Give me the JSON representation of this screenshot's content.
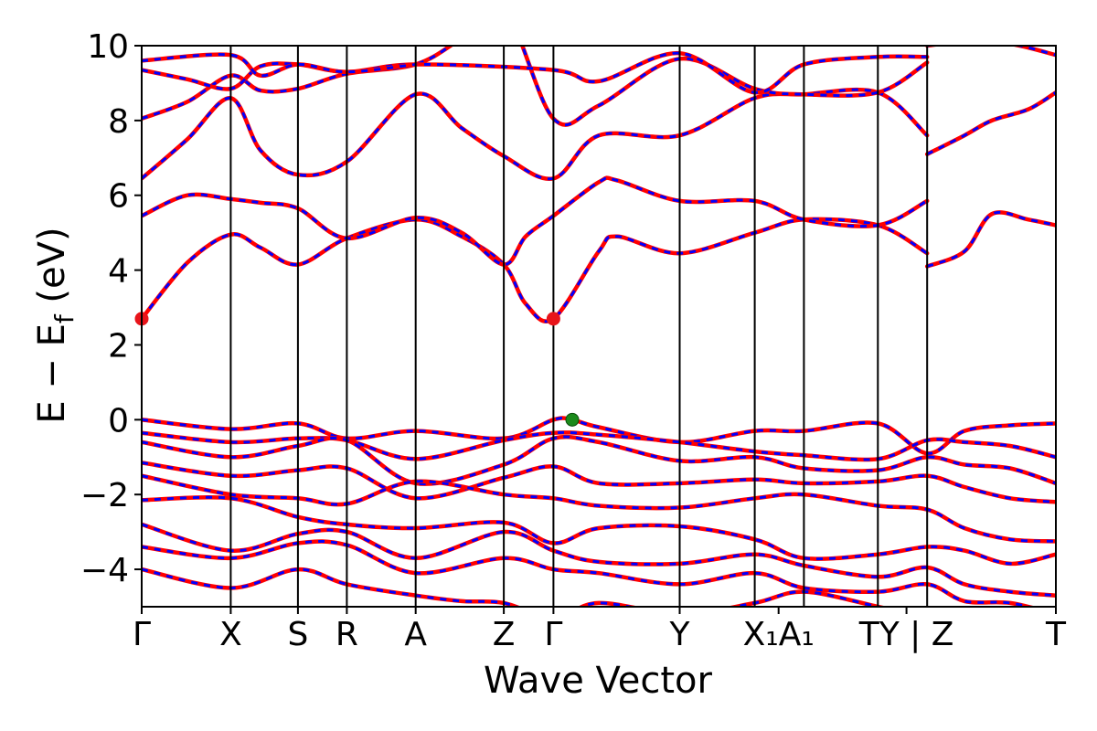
{
  "chart_data": {
    "type": "line",
    "xlabel": "Wave Vector",
    "ylabel": "E − E_f (eV)",
    "ylabel_main": "E − E",
    "ylabel_sub": "f",
    "ylabel_unit": " (eV)",
    "ylim": [
      -5,
      10
    ],
    "yticks": [
      -4,
      -2,
      0,
      2,
      4,
      6,
      8,
      10
    ],
    "ytick_labels": [
      "−4",
      "−2",
      "0",
      "2",
      "4",
      "6",
      "8",
      "10"
    ],
    "grid": false,
    "kpoints": [
      {
        "label": "Γ",
        "x": 0.0
      },
      {
        "label": "X",
        "x": 0.0974
      },
      {
        "label": "S",
        "x": 0.1709
      },
      {
        "label": "R",
        "x": 0.2244
      },
      {
        "label": "A",
        "x": 0.2997
      },
      {
        "label": "Z",
        "x": 0.3961
      },
      {
        "label": "Γ",
        "x": 0.4504
      },
      {
        "label": "Y",
        "x": 0.5885
      },
      {
        "label": "X₁A₁",
        "x": 0.6967
      },
      {
        "label": "TY | Z",
        "x": 0.8366
      },
      {
        "label": "T",
        "x": 1.0
      }
    ],
    "vlines": [
      0.0974,
      0.1709,
      0.2244,
      0.2997,
      0.3961,
      0.4504,
      0.5885,
      0.6706,
      0.7244,
      0.8053,
      0.8592
    ],
    "xlim": [
      0,
      1
    ],
    "series_styles": {
      "up": {
        "color": "#ff0000",
        "width": 4.5
      },
      "down": {
        "color": "#0000ff",
        "width": 3,
        "dash": "7,7"
      }
    },
    "markers": [
      {
        "kind": "CBM",
        "x": 0.0,
        "y": 2.7,
        "color": "#e8141a"
      },
      {
        "kind": "CBM",
        "x": 0.4504,
        "y": 2.7,
        "color": "#e8141a"
      },
      {
        "kind": "VBM",
        "x": 0.471,
        "y": 0.0,
        "color": "#1b8a1b"
      }
    ],
    "bands": [
      {
        "x": [
          0,
          0.05,
          0.0974,
          0.13,
          0.1709,
          0.2244,
          0.2997,
          0.35,
          0.3961,
          0.42,
          0.4504,
          0.5,
          0.52,
          0.5885,
          0.6706,
          0.7244,
          0.8053,
          0.8592
        ],
        "y": [
          2.7,
          4.2,
          4.95,
          4.6,
          4.15,
          4.85,
          5.35,
          4.9,
          4.15,
          3.1,
          2.7,
          4.5,
          4.9,
          4.45,
          5.0,
          5.35,
          5.2,
          4.45
        ]
      },
      {
        "x": [
          0,
          0.05,
          0.0974,
          0.13,
          0.1709,
          0.2244,
          0.2997,
          0.35,
          0.3961,
          0.42,
          0.4504,
          0.5,
          0.52,
          0.5885,
          0.6706,
          0.7244,
          0.8053,
          0.8592
        ],
        "y": [
          5.45,
          6.0,
          5.9,
          5.8,
          5.65,
          4.85,
          5.4,
          5.0,
          4.15,
          4.9,
          5.45,
          6.35,
          6.4,
          5.85,
          5.85,
          5.35,
          5.2,
          5.85
        ]
      },
      {
        "x": [
          0,
          0.05,
          0.0974,
          0.13,
          0.1709,
          0.2244,
          0.2997,
          0.35,
          0.3961,
          0.4504,
          0.5,
          0.5885,
          0.6706,
          0.7244,
          0.8053,
          0.8592
        ],
        "y": [
          6.45,
          7.5,
          8.6,
          7.2,
          6.55,
          6.9,
          8.7,
          7.8,
          7.05,
          6.45,
          7.6,
          7.6,
          8.6,
          8.7,
          8.75,
          7.6
        ]
      },
      {
        "x": [
          0,
          0.05,
          0.0974,
          0.13,
          0.1709,
          0.2244,
          0.2997,
          0.35,
          0.3961,
          0.4504,
          0.5,
          0.5885,
          0.6706,
          0.7244,
          0.8053,
          0.8592
        ],
        "y": [
          8.05,
          8.5,
          9.2,
          8.8,
          8.85,
          9.25,
          9.5,
          10.2,
          11.0,
          8.05,
          8.4,
          9.65,
          8.85,
          8.7,
          8.75,
          9.55
        ]
      },
      {
        "x": [
          0,
          0.05,
          0.0974,
          0.13,
          0.1709,
          0.2244,
          0.2997,
          0.4504,
          0.5,
          0.5885,
          0.6706,
          0.7244,
          0.8053,
          0.8592
        ],
        "y": [
          9.35,
          9.1,
          8.85,
          9.45,
          9.5,
          9.3,
          9.5,
          9.35,
          9.05,
          9.8,
          8.75,
          9.5,
          9.7,
          9.7
        ]
      },
      {
        "x": [
          0,
          0.0974,
          0.13,
          0.1709,
          0.2244,
          0.2997
        ],
        "y": [
          9.6,
          9.75,
          9.2,
          9.5,
          9.3,
          9.5
        ]
      },
      {
        "x": [
          0.8592,
          0.9,
          0.93,
          0.97,
          1.0
        ],
        "y": [
          4.1,
          4.5,
          5.5,
          5.35,
          5.2
        ]
      },
      {
        "x": [
          0.8592,
          0.9,
          0.93,
          0.97,
          1.0
        ],
        "y": [
          7.1,
          7.6,
          8.0,
          8.3,
          8.75
        ]
      },
      {
        "x": [
          0.8592,
          0.9,
          0.95,
          1.0
        ],
        "y": [
          10.0,
          10.1,
          10.05,
          9.75
        ]
      },
      {
        "x": [
          0,
          0.0974,
          0.1709,
          0.2244,
          0.2997,
          0.3961,
          0.4504,
          0.471,
          0.5,
          0.5885,
          0.6706,
          0.7244,
          0.8053,
          0.8592,
          0.9,
          0.95,
          1.0
        ],
        "y": [
          0.0,
          -0.25,
          -0.1,
          -0.5,
          -0.3,
          -0.5,
          0.0,
          0.0,
          -0.2,
          -0.6,
          -0.3,
          -0.3,
          -0.1,
          -0.9,
          -0.3,
          -0.15,
          -0.1
        ]
      },
      {
        "x": [
          0,
          0.0974,
          0.1709,
          0.2244,
          0.2997,
          0.3961,
          0.4504,
          0.5,
          0.5885,
          0.6706,
          0.7244,
          0.8053,
          0.8592,
          0.9,
          0.95,
          1.0
        ],
        "y": [
          -0.35,
          -0.6,
          -0.5,
          -0.55,
          -1.05,
          -0.55,
          -0.35,
          -0.4,
          -0.6,
          -0.85,
          -0.95,
          -1.05,
          -0.55,
          -0.6,
          -0.7,
          -1.0
        ]
      },
      {
        "x": [
          0,
          0.0974,
          0.1709,
          0.2244,
          0.2997,
          0.3961,
          0.4504,
          0.5,
          0.5885,
          0.6706,
          0.7244,
          0.8053,
          0.8592,
          0.9,
          0.95,
          1.0
        ],
        "y": [
          -0.6,
          -1.0,
          -0.7,
          -0.55,
          -1.7,
          -1.2,
          -0.5,
          -0.6,
          -1.1,
          -1.0,
          -1.3,
          -1.35,
          -1.0,
          -1.2,
          -1.3,
          -1.7
        ]
      },
      {
        "x": [
          0,
          0.0974,
          0.1709,
          0.2244,
          0.2997,
          0.3961,
          0.4504,
          0.5,
          0.5885,
          0.6706,
          0.7244,
          0.8053,
          0.8592,
          0.9,
          0.95,
          1.0
        ],
        "y": [
          -1.15,
          -1.5,
          -1.35,
          -1.3,
          -2.1,
          -1.55,
          -1.25,
          -1.7,
          -1.7,
          -1.6,
          -1.7,
          -1.65,
          -1.5,
          -1.8,
          -2.1,
          -2.2
        ]
      },
      {
        "x": [
          0,
          0.0974,
          0.1709,
          0.2244,
          0.2997,
          0.3961,
          0.4504,
          0.5,
          0.5885,
          0.6706,
          0.7244,
          0.8053,
          0.8592,
          0.9,
          0.95,
          1.0
        ],
        "y": [
          -1.5,
          -2.0,
          -2.1,
          -2.25,
          -1.65,
          -2.0,
          -2.1,
          -2.3,
          -2.35,
          -2.1,
          -2.0,
          -2.3,
          -2.4,
          -2.9,
          -3.2,
          -3.25
        ]
      },
      {
        "x": [
          0,
          0.0974,
          0.1709,
          0.2244,
          0.2997,
          0.3961,
          0.4504,
          0.5,
          0.5885,
          0.6706,
          0.7244,
          0.8053,
          0.8592,
          0.9,
          0.95,
          1.0
        ],
        "y": [
          -2.15,
          -2.1,
          -2.6,
          -2.8,
          -2.9,
          -2.75,
          -3.3,
          -2.9,
          -2.85,
          -3.2,
          -3.7,
          -3.6,
          -3.4,
          -3.5,
          -3.85,
          -3.6
        ]
      },
      {
        "x": [
          0,
          0.0974,
          0.1709,
          0.2244,
          0.2997,
          0.3961,
          0.4504,
          0.5,
          0.5885,
          0.6706,
          0.7244,
          0.8053,
          0.8592,
          0.9,
          0.95,
          1.0
        ],
        "y": [
          -2.8,
          -3.5,
          -3.05,
          -3.0,
          -3.7,
          -3.0,
          -3.5,
          -3.8,
          -3.85,
          -3.6,
          -3.9,
          -4.2,
          -3.95,
          -4.4,
          -4.6,
          -4.7
        ]
      },
      {
        "x": [
          0,
          0.0974,
          0.1709,
          0.2244,
          0.2997,
          0.3961,
          0.4504,
          0.5,
          0.5885,
          0.6706,
          0.7244,
          0.8053,
          0.8592,
          0.9,
          0.95,
          1.0
        ],
        "y": [
          -3.4,
          -3.7,
          -3.3,
          -3.35,
          -4.1,
          -3.7,
          -4.0,
          -4.1,
          -4.4,
          -4.1,
          -4.5,
          -4.6,
          -4.4,
          -4.85,
          -4.9,
          -5.2
        ]
      },
      {
        "x": [
          0,
          0.0974,
          0.1709,
          0.2244,
          0.2997,
          0.35,
          0.3961,
          0.4504,
          0.5,
          0.5885,
          0.6706,
          0.7244,
          0.8053,
          0.8592
        ],
        "y": [
          -4.0,
          -4.5,
          -4.0,
          -4.4,
          -4.7,
          -4.85,
          -4.9,
          -5.3,
          -4.9,
          -5.2,
          -4.9,
          -4.6,
          -5.0,
          -5.3
        ]
      }
    ]
  }
}
